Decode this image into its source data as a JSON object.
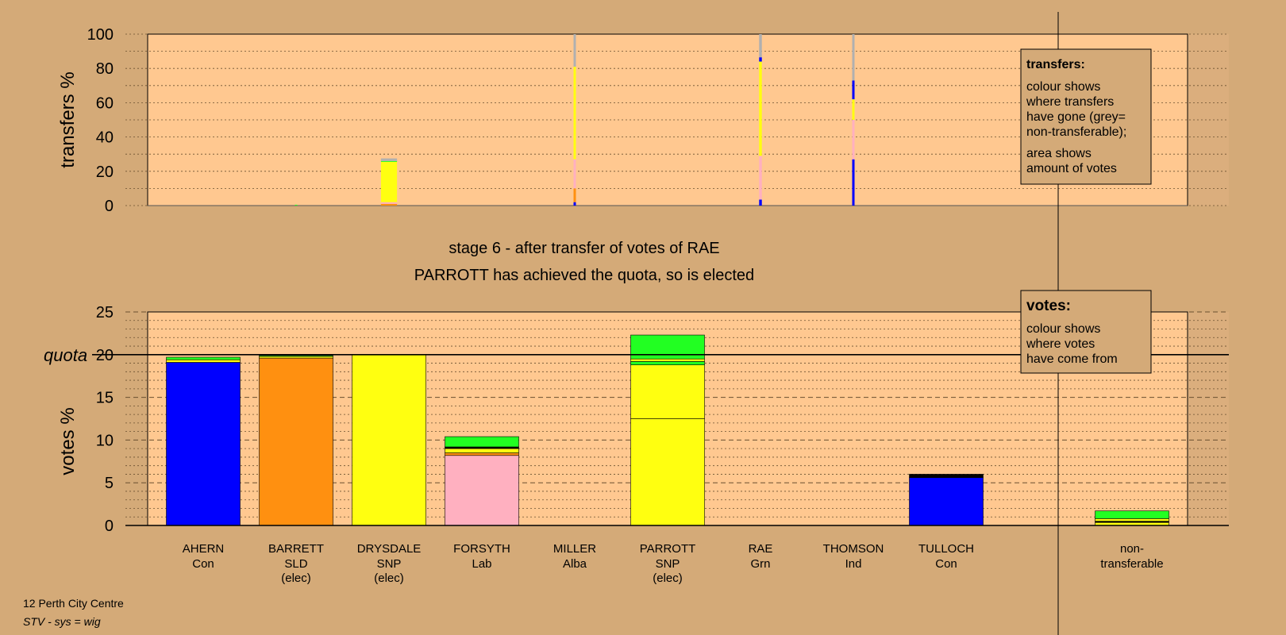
{
  "stage_title": "stage 6 - after transfer of votes of RAE",
  "stage_subtitle": "PARROTT has achieved the quota, so is elected",
  "footer": {
    "constituency": "12 Perth City Centre",
    "system": "STV - sys = wig"
  },
  "transfers_legend": {
    "title": "transfers:",
    "lines_a": [
      "colour shows",
      "where transfers",
      "have gone (grey=",
      "non-transferable);"
    ],
    "lines_b": [
      "area shows",
      "amount of votes"
    ]
  },
  "votes_legend": {
    "title": "votes:",
    "lines": [
      "colour shows",
      "where votes",
      "have come from"
    ]
  },
  "colors": {
    "Con": "#0000ff",
    "SLD": "#ff9010",
    "SNP": "#ffff10",
    "Lab": "#ffb0c0",
    "Grn": "#22ff22",
    "Alba": "#000000",
    "Ind": "#404040",
    "nontrans": "#b0b0b0",
    "plot_bg": "#ffc890",
    "page_bg": "#d4aa78"
  },
  "chart_data": [
    {
      "type": "bar",
      "name": "transfers",
      "ylabel": "transfers %",
      "ylim": [
        0,
        100
      ],
      "yticks": [
        0,
        20,
        40,
        60,
        80,
        100
      ],
      "categories": [
        "AHERN",
        "BARRETT",
        "DRYSDALE",
        "FORSYTH",
        "MILLER",
        "PARROTT",
        "RAE",
        "THOMSON",
        "TULLOCH",
        "non-transferable"
      ],
      "bars": [
        {
          "category": "AHERN",
          "width_pct": 0,
          "segments": []
        },
        {
          "category": "BARRETT",
          "width_pct": 0.5,
          "segments": [
            {
              "party": "Grn",
              "value": 0.5
            }
          ]
        },
        {
          "category": "DRYSDALE",
          "width_pct": 6.5,
          "segments": [
            {
              "party": "SLD",
              "value": 1
            },
            {
              "party": "Lab",
              "value": 1
            },
            {
              "party": "SNP",
              "value": 23.5
            },
            {
              "party": "Grn",
              "value": 0.5
            },
            {
              "party": "nontrans",
              "value": 1.5
            }
          ]
        },
        {
          "category": "FORSYTH",
          "width_pct": 0,
          "segments": []
        },
        {
          "category": "MILLER",
          "width_pct": 0.3,
          "segments": [
            {
              "party": "Con",
              "value": 2
            },
            {
              "party": "SLD",
              "value": 8
            },
            {
              "party": "Lab",
              "value": 17
            },
            {
              "party": "SNP",
              "value": 54
            },
            {
              "party": "nontrans",
              "value": 19
            }
          ]
        },
        {
          "category": "PARROTT",
          "width_pct": 0,
          "segments": []
        },
        {
          "category": "RAE",
          "width_pct": 1.1,
          "segments": [
            {
              "party": "Con",
              "value": 3.5
            },
            {
              "party": "Lab",
              "value": 25.5
            },
            {
              "party": "SNP",
              "value": 55
            },
            {
              "party": "Con",
              "value": 2.5
            },
            {
              "party": "nontrans",
              "value": 13.5
            }
          ]
        },
        {
          "category": "THOMSON",
          "width_pct": 0.2,
          "segments": [
            {
              "party": "Con",
              "value": 27
            },
            {
              "party": "Lab",
              "value": 23
            },
            {
              "party": "SNP",
              "value": 12
            },
            {
              "party": "Con",
              "value": 11
            },
            {
              "party": "nontrans",
              "value": 27
            }
          ]
        },
        {
          "category": "TULLOCH",
          "width_pct": 0,
          "segments": []
        },
        {
          "category": "non-transferable",
          "width_pct": 0,
          "segments": []
        }
      ]
    },
    {
      "type": "bar",
      "name": "votes",
      "ylabel": "votes %",
      "ylim": [
        0,
        25
      ],
      "yticks": [
        0,
        5,
        10,
        15,
        20,
        25
      ],
      "quota": {
        "label": "quota",
        "value": 20
      },
      "candidates": [
        {
          "name": "AHERN",
          "party": "Con",
          "note": "",
          "segments": [
            {
              "party": "Con",
              "value": 19.1
            },
            {
              "party": "SNP",
              "value": 0.3
            },
            {
              "party": "Grn",
              "value": 0.3
            }
          ]
        },
        {
          "name": "BARRETT",
          "party": "SLD",
          "note": "(elec)",
          "segments": [
            {
              "party": "SLD",
              "value": 19.6
            },
            {
              "party": "SNP",
              "value": 0.2
            },
            {
              "party": "Grn",
              "value": 0.1
            }
          ]
        },
        {
          "name": "DRYSDALE",
          "party": "SNP",
          "note": "(elec)",
          "segments": [
            {
              "party": "SNP",
              "value": 20
            }
          ]
        },
        {
          "name": "FORSYTH",
          "party": "Lab",
          "note": "",
          "segments": [
            {
              "party": "Lab",
              "value": 8.2
            },
            {
              "party": "SLD",
              "value": 0.3
            },
            {
              "party": "SNP",
              "value": 0.5
            },
            {
              "party": "Alba",
              "value": 0.2
            },
            {
              "party": "Grn",
              "value": 1.2
            }
          ]
        },
        {
          "name": "MILLER",
          "party": "Alba",
          "note": "",
          "segments": []
        },
        {
          "name": "PARROTT",
          "party": "SNP",
          "note": "(elec)",
          "segments": [
            {
              "party": "SNP",
              "value": 12.5
            },
            {
              "party": "SNP",
              "value": 6.3
            },
            {
              "party": "Grn",
              "value": 0.4
            },
            {
              "party": "SNP",
              "value": 0.3
            },
            {
              "party": "Grn",
              "value": 2.8
            }
          ]
        },
        {
          "name": "RAE",
          "party": "Grn",
          "note": "",
          "segments": []
        },
        {
          "name": "THOMSON",
          "party": "Ind",
          "note": "",
          "segments": []
        },
        {
          "name": "TULLOCH",
          "party": "Con",
          "note": "",
          "segments": [
            {
              "party": "Con",
              "value": 5.6
            },
            {
              "party": "Alba",
              "value": 0.4
            }
          ]
        }
      ],
      "nontransferable": {
        "line1": "non-",
        "line2": "transferable",
        "segments": [
          {
            "party": "SNP",
            "value": 0.35
          },
          {
            "party": "Alba",
            "value": 0.15
          },
          {
            "party": "SNP",
            "value": 0.3
          },
          {
            "party": "Grn",
            "value": 0.9
          }
        ]
      }
    }
  ]
}
